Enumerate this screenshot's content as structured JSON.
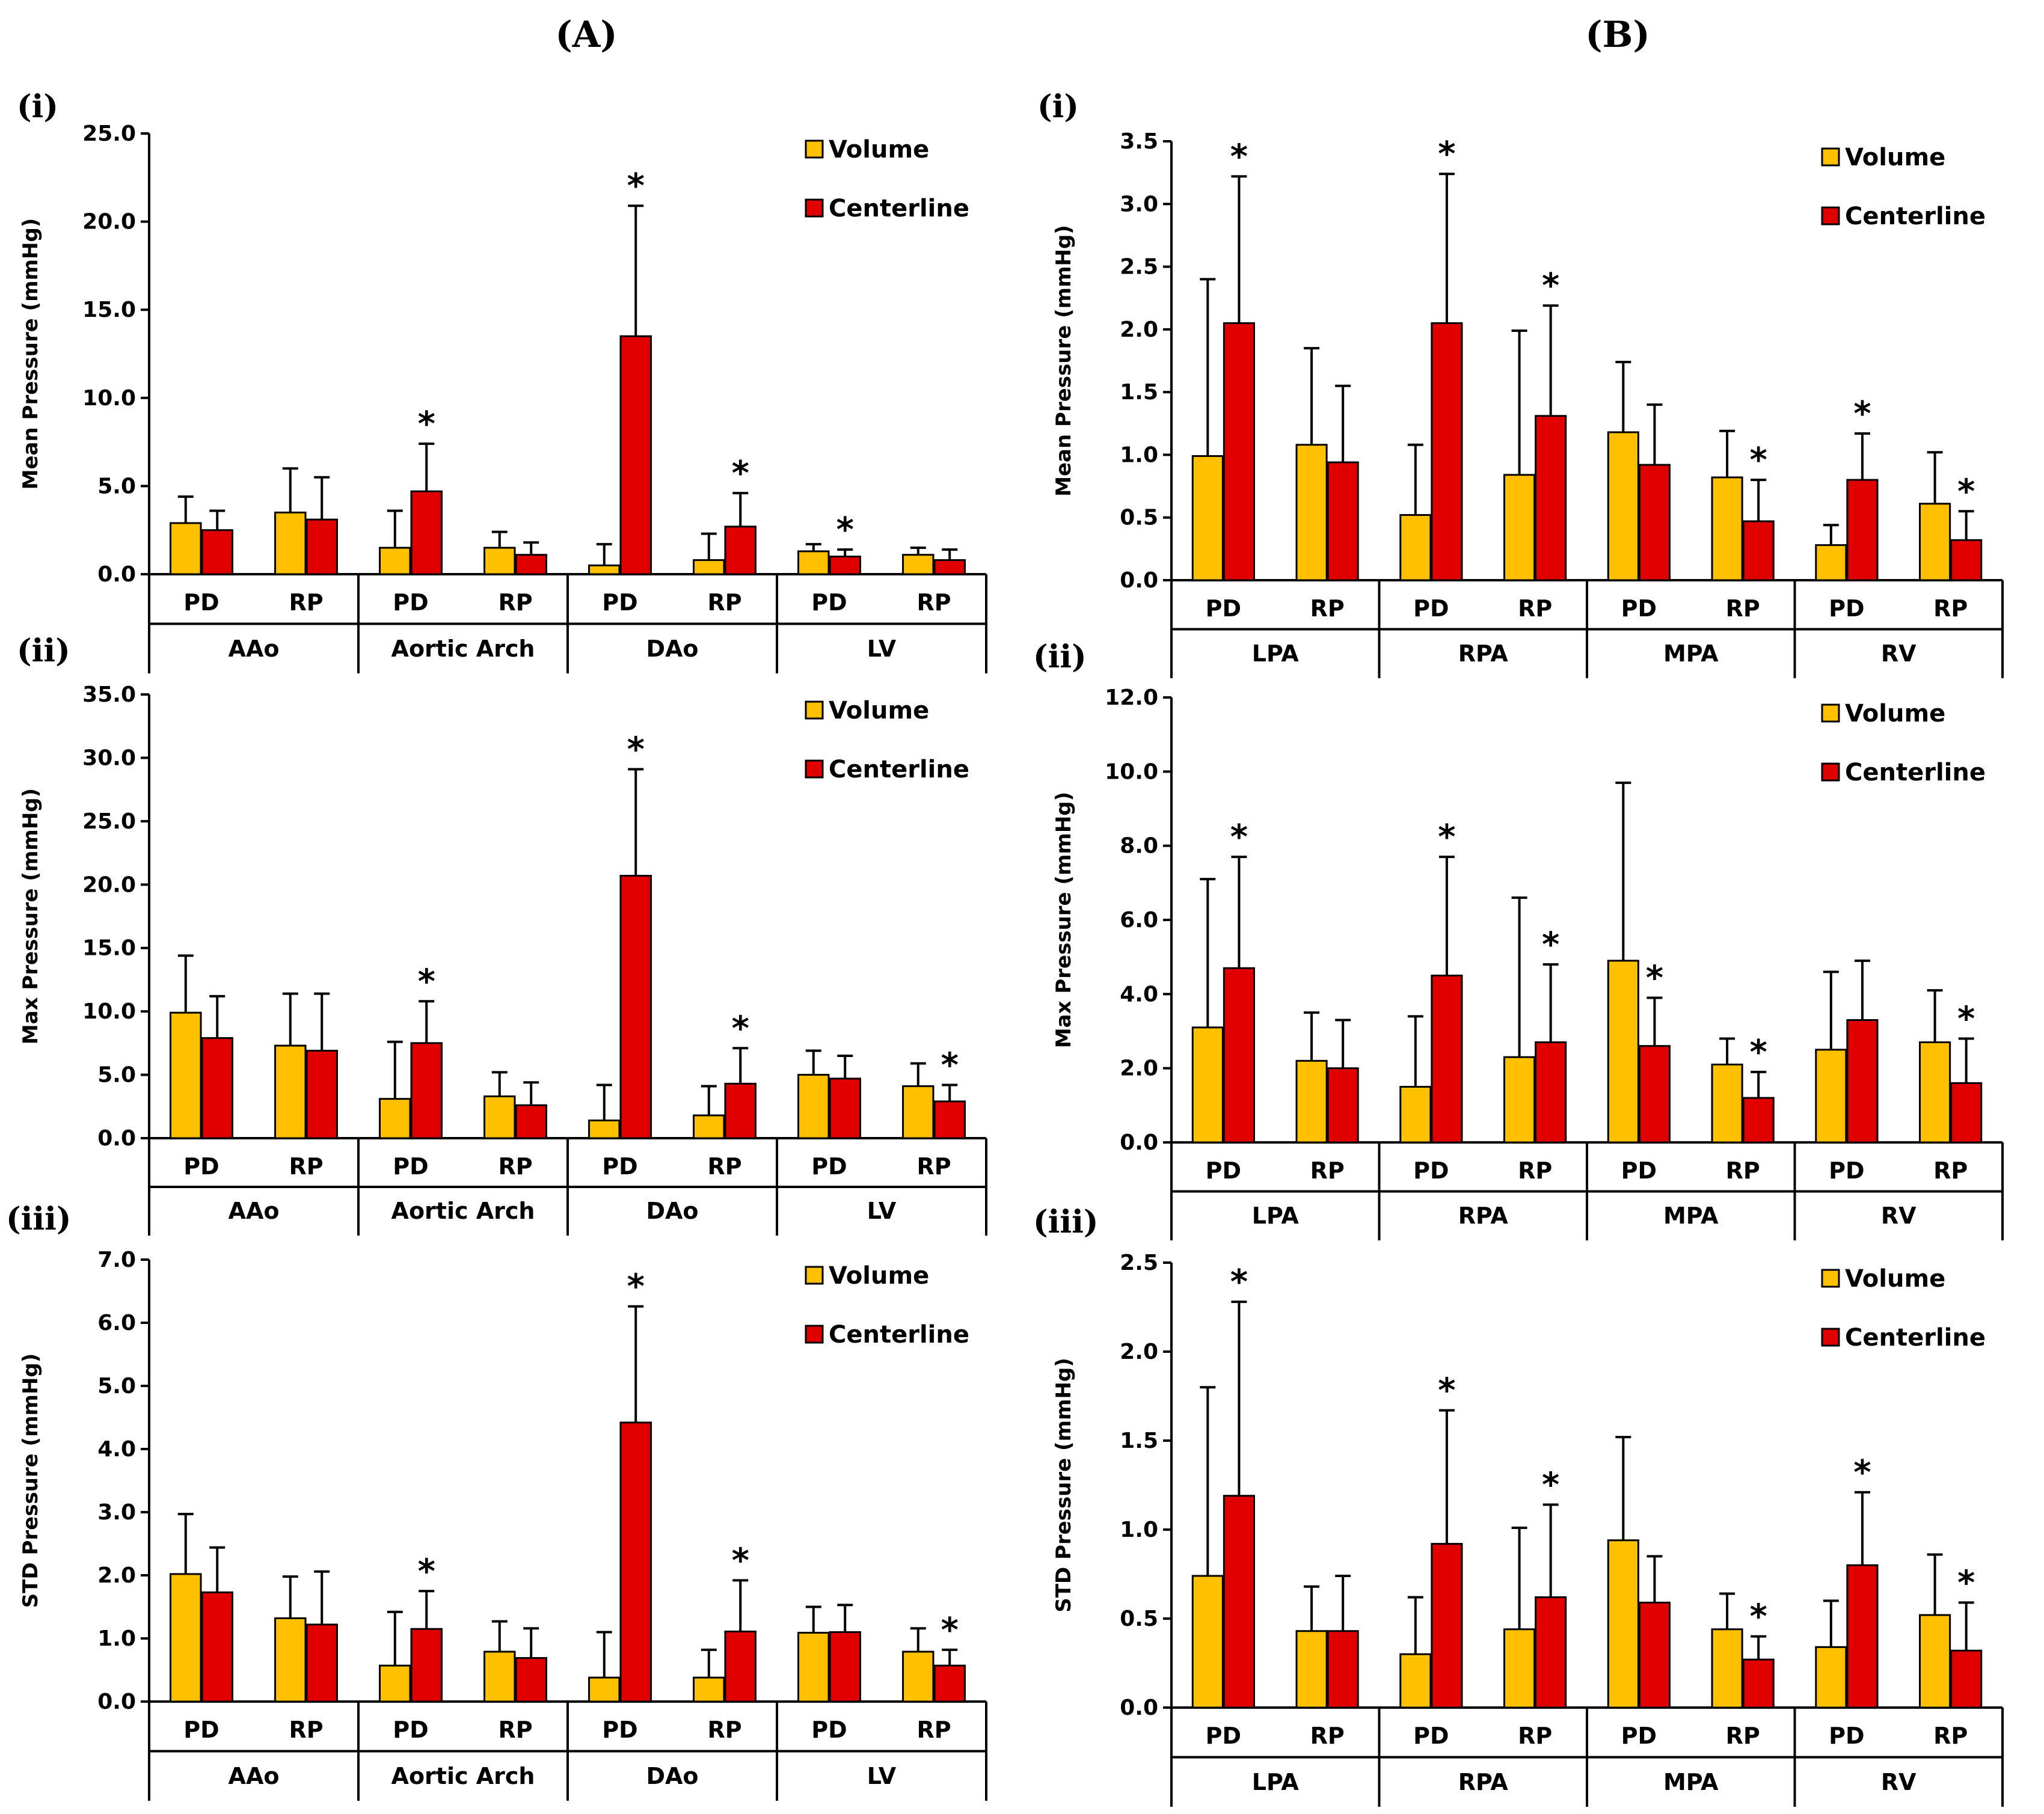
{
  "figure": {
    "column_labels": [
      "(A)",
      "(B)"
    ],
    "colors": {
      "volume": "#FFC000",
      "centerline": "#E00000",
      "outline": "#000000"
    }
  },
  "chart_data": [
    {
      "panel_label": "(i)",
      "type": "bar",
      "ylabel": "Mean Pressure (mmHg)",
      "ylim": [
        0,
        25
      ],
      "ytick_step": 5,
      "ytick_labels": [
        "0.0",
        "5.0",
        "10.0",
        "15.0",
        "20.0",
        "25.0"
      ],
      "groups": [
        "AAo",
        "Aortic Arch",
        "DAo",
        "LV"
      ],
      "subcategories": [
        "PD",
        "RP"
      ],
      "legend": [
        "Volume",
        "Centerline"
      ],
      "legend_position": "top-right",
      "series": [
        {
          "name": "Volume",
          "values": [
            2.9,
            3.5,
            1.5,
            1.5,
            0.5,
            0.8,
            1.3,
            1.1
          ],
          "errors": [
            1.5,
            2.5,
            2.1,
            0.9,
            1.2,
            1.5,
            0.4,
            0.4
          ]
        },
        {
          "name": "Centerline",
          "values": [
            2.5,
            3.1,
            4.7,
            1.1,
            13.5,
            2.7,
            1.0,
            0.8
          ],
          "errors": [
            1.1,
            2.4,
            2.7,
            0.7,
            7.4,
            1.9,
            0.4,
            0.6
          ]
        }
      ],
      "significant": [
        false,
        false,
        true,
        false,
        true,
        true,
        true,
        false
      ]
    },
    {
      "panel_label": "(ii)",
      "type": "bar",
      "ylabel": "Max Pressure (mmHg)",
      "ylim": [
        0,
        35
      ],
      "ytick_step": 5,
      "ytick_labels": [
        "0.0",
        "5.0",
        "10.0",
        "15.0",
        "20.0",
        "25.0",
        "30.0",
        "35.0"
      ],
      "groups": [
        "AAo",
        "Aortic Arch",
        "DAo",
        "LV"
      ],
      "subcategories": [
        "PD",
        "RP"
      ],
      "legend": [
        "Volume",
        "Centerline"
      ],
      "legend_position": "top-right",
      "series": [
        {
          "name": "Volume",
          "values": [
            9.9,
            7.3,
            3.1,
            3.3,
            1.4,
            1.8,
            5.0,
            4.1
          ],
          "errors": [
            4.5,
            4.1,
            4.5,
            1.9,
            2.8,
            2.3,
            1.9,
            1.8
          ]
        },
        {
          "name": "Centerline",
          "values": [
            7.9,
            6.9,
            7.5,
            2.6,
            20.7,
            4.3,
            4.7,
            2.9
          ],
          "errors": [
            3.3,
            4.5,
            3.3,
            1.8,
            8.4,
            2.8,
            1.8,
            1.3
          ]
        }
      ],
      "significant": [
        false,
        false,
        true,
        false,
        true,
        true,
        false,
        true
      ]
    },
    {
      "panel_label": "(iii)",
      "type": "bar",
      "ylabel": "STD Pressure (mmHg)",
      "ylim": [
        0,
        7
      ],
      "ytick_step": 1,
      "ytick_labels": [
        "0.0",
        "1.0",
        "2.0",
        "3.0",
        "4.0",
        "5.0",
        "6.0",
        "7.0"
      ],
      "groups": [
        "AAo",
        "Aortic Arch",
        "DAo",
        "LV"
      ],
      "subcategories": [
        "PD",
        "RP"
      ],
      "legend": [
        "Volume",
        "Centerline"
      ],
      "legend_position": "top-right",
      "series": [
        {
          "name": "Volume",
          "values": [
            2.02,
            1.32,
            0.57,
            0.79,
            0.38,
            0.38,
            1.09,
            0.79
          ],
          "errors": [
            0.95,
            0.66,
            0.85,
            0.48,
            0.72,
            0.44,
            0.41,
            0.37
          ]
        },
        {
          "name": "Centerline",
          "values": [
            1.73,
            1.22,
            1.15,
            0.69,
            4.42,
            1.11,
            1.1,
            0.57
          ],
          "errors": [
            0.71,
            0.84,
            0.6,
            0.47,
            1.84,
            0.81,
            0.43,
            0.25
          ]
        }
      ],
      "significant": [
        false,
        false,
        true,
        false,
        true,
        true,
        false,
        true
      ]
    },
    {
      "panel_label": "(i)",
      "type": "bar",
      "ylabel": "Mean Pressure (mmHg)",
      "ylim": [
        0,
        3.5
      ],
      "ytick_step": 0.5,
      "ytick_labels": [
        "0.0",
        "0.5",
        "1.0",
        "1.5",
        "2.0",
        "2.5",
        "3.0",
        "3.5"
      ],
      "groups": [
        "LPA",
        "RPA",
        "MPA",
        "RV"
      ],
      "subcategories": [
        "PD",
        "RP"
      ],
      "legend": [
        "Volume",
        "Centerline"
      ],
      "legend_position": "top-right",
      "series": [
        {
          "name": "Volume",
          "values": [
            0.99,
            1.08,
            0.52,
            0.84,
            1.18,
            0.82,
            0.28,
            0.61
          ],
          "errors": [
            1.41,
            0.77,
            0.56,
            1.15,
            0.56,
            0.37,
            0.16,
            0.41
          ]
        },
        {
          "name": "Centerline",
          "values": [
            2.05,
            0.94,
            2.05,
            1.31,
            0.92,
            0.47,
            0.8,
            0.32
          ],
          "errors": [
            1.17,
            0.61,
            1.19,
            0.88,
            0.48,
            0.33,
            0.37,
            0.23
          ]
        }
      ],
      "significant": [
        false,
        false,
        false,
        true,
        false,
        true,
        false,
        true
      ],
      "significant_centerline": [
        true,
        false,
        true,
        true,
        false,
        true,
        true,
        true
      ]
    },
    {
      "panel_label": "(ii)",
      "type": "bar",
      "ylabel": "Max Pressure (mmHg)",
      "ylim": [
        0,
        12
      ],
      "ytick_step": 2,
      "ytick_labels": [
        "0.0",
        "2.0",
        "4.0",
        "6.0",
        "8.0",
        "10.0",
        "12.0"
      ],
      "groups": [
        "LPA",
        "RPA",
        "MPA",
        "RV"
      ],
      "subcategories": [
        "PD",
        "RP"
      ],
      "legend": [
        "Volume",
        "Centerline"
      ],
      "legend_position": "top-right",
      "series": [
        {
          "name": "Volume",
          "values": [
            3.1,
            2.2,
            1.5,
            2.3,
            4.9,
            2.1,
            2.5,
            2.7
          ],
          "errors": [
            4.0,
            1.3,
            1.9,
            4.3,
            4.8,
            0.7,
            2.1,
            1.4
          ]
        },
        {
          "name": "Centerline",
          "values": [
            4.7,
            2.0,
            4.5,
            2.7,
            2.6,
            1.2,
            3.3,
            1.6
          ],
          "errors": [
            3.0,
            1.3,
            3.2,
            2.1,
            1.3,
            0.7,
            1.6,
            1.2
          ]
        }
      ],
      "significant_centerline": [
        true,
        false,
        true,
        true,
        true,
        true,
        false,
        true
      ]
    },
    {
      "panel_label": "(iii)",
      "type": "bar",
      "ylabel": "STD Pressure (mmHg)",
      "ylim": [
        0,
        2.5
      ],
      "ytick_step": 0.5,
      "ytick_labels": [
        "0.0",
        "0.5",
        "1.0",
        "1.5",
        "2.0",
        "2.5"
      ],
      "groups": [
        "LPA",
        "RPA",
        "MPA",
        "RV"
      ],
      "subcategories": [
        "PD",
        "RP"
      ],
      "legend": [
        "Volume",
        "Centerline"
      ],
      "legend_position": "top-right",
      "series": [
        {
          "name": "Volume",
          "values": [
            0.74,
            0.43,
            0.3,
            0.44,
            0.94,
            0.44,
            0.34,
            0.52
          ],
          "errors": [
            1.06,
            0.25,
            0.32,
            0.57,
            0.58,
            0.2,
            0.26,
            0.34
          ]
        },
        {
          "name": "Centerline",
          "values": [
            1.19,
            0.43,
            0.92,
            0.62,
            0.59,
            0.27,
            0.8,
            0.32
          ],
          "errors": [
            1.09,
            0.31,
            0.75,
            0.52,
            0.26,
            0.13,
            0.41,
            0.27
          ]
        }
      ],
      "significant_centerline": [
        true,
        false,
        true,
        true,
        false,
        true,
        true,
        true
      ]
    }
  ]
}
